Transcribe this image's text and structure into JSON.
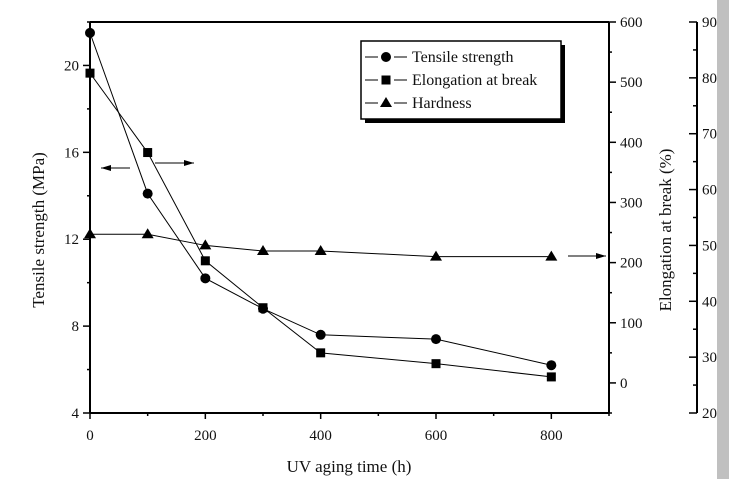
{
  "chart_data": {
    "type": "line",
    "title": "",
    "xlabel": "UV aging time (h)",
    "x": [
      0,
      100,
      200,
      300,
      400,
      600,
      800
    ],
    "xlim": [
      0,
      900
    ],
    "xticks": [
      0,
      200,
      400,
      600,
      800
    ],
    "xtick_labels": [
      "0",
      "200",
      "400",
      "600",
      "800"
    ],
    "axes": {
      "left": {
        "label": "Tensile strength (MPa)",
        "ylim": [
          4,
          22
        ],
        "ticks": [
          4,
          8,
          12,
          16,
          20
        ],
        "tick_labels": [
          "4",
          "8",
          "12",
          "16",
          "20"
        ]
      },
      "right": {
        "label": "Elongation at break (%)",
        "ylim": [
          -50,
          600
        ],
        "ticks": [
          0,
          100,
          200,
          300,
          400,
          500,
          600
        ],
        "tick_labels": [
          "0",
          "100",
          "200",
          "300",
          "400",
          "500",
          "600"
        ]
      },
      "far_right": {
        "label": "",
        "ylim": [
          20,
          90
        ],
        "ticks": [
          20,
          30,
          40,
          50,
          60,
          70,
          80,
          90
        ],
        "tick_labels": [
          "20",
          "30",
          "40",
          "50",
          "60",
          "70",
          "80",
          "90"
        ]
      }
    },
    "series": [
      {
        "name": "Tensile strength",
        "marker": "circle",
        "axis": "left",
        "values": [
          21.5,
          14.1,
          10.2,
          8.8,
          7.6,
          7.4,
          6.2
        ]
      },
      {
        "name": "Elongation at break",
        "marker": "square",
        "axis": "right",
        "values": [
          515,
          383,
          203,
          125,
          50,
          32,
          10
        ]
      },
      {
        "name": "Hardness",
        "marker": "triangle",
        "axis": "far_right",
        "values": [
          52,
          52,
          50,
          49,
          49,
          48,
          48
        ]
      }
    ],
    "legend": {
      "placement": "top-right",
      "entries": [
        "Tensile strength",
        "Elongation at break",
        "Hardness"
      ]
    },
    "annotations": [
      {
        "type": "arrow",
        "direction": "left",
        "points_to": "left axis",
        "near_series": "Tensile strength"
      },
      {
        "type": "arrow",
        "direction": "right",
        "points_to": "right axis",
        "near_series": "Elongation at break"
      },
      {
        "type": "arrow",
        "direction": "right",
        "points_to": "far right axis",
        "near_series": "Hardness"
      }
    ],
    "grid": false
  }
}
